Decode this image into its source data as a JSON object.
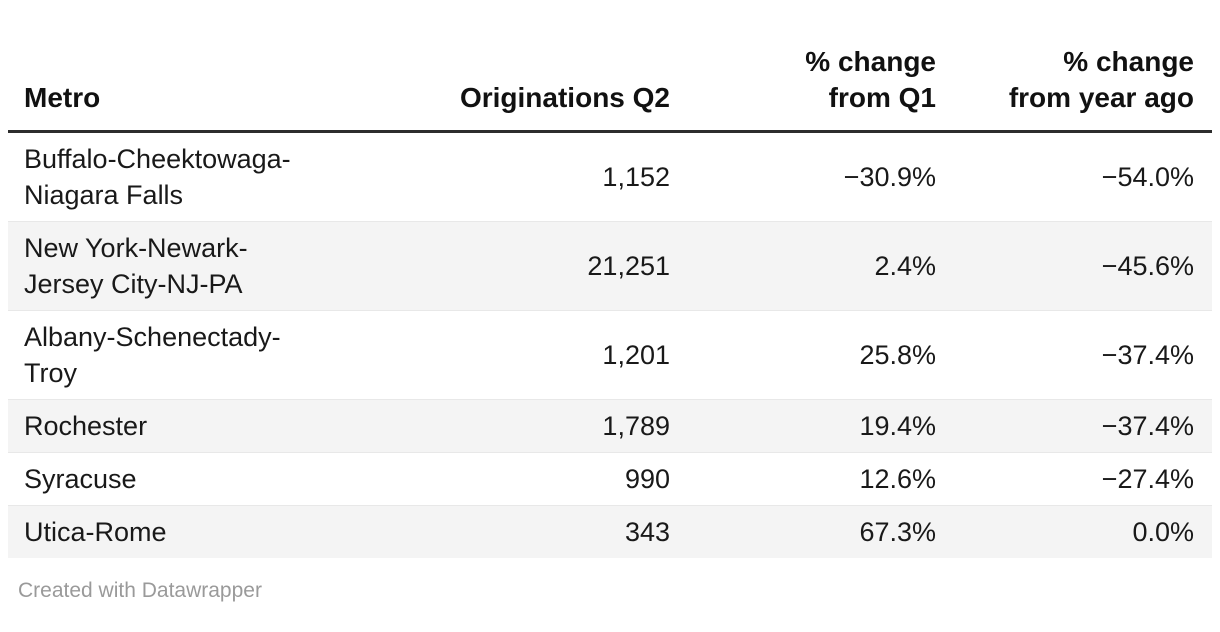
{
  "table": {
    "columns": [
      {
        "label": "Metro",
        "align": "left"
      },
      {
        "label": "Originations Q2",
        "align": "right"
      },
      {
        "label": "% change\nfrom Q1",
        "align": "right"
      },
      {
        "label": "% change\nfrom year ago",
        "align": "right"
      }
    ],
    "rows": [
      {
        "metro": "Buffalo-Cheektowaga-\nNiagara Falls",
        "originations_q2": "1,152",
        "change_q1": "−30.9%",
        "change_year_ago": "−54.0%"
      },
      {
        "metro": "New York-Newark-\nJersey City-NJ-PA",
        "originations_q2": "21,251",
        "change_q1": "2.4%",
        "change_year_ago": "−45.6%"
      },
      {
        "metro": "Albany-Schenectady-\nTroy",
        "originations_q2": "1,201",
        "change_q1": "25.8%",
        "change_year_ago": "−37.4%"
      },
      {
        "metro": "Rochester",
        "originations_q2": "1,789",
        "change_q1": "19.4%",
        "change_year_ago": "−37.4%"
      },
      {
        "metro": "Syracuse",
        "originations_q2": "990",
        "change_q1": "12.6%",
        "change_year_ago": "−27.4%"
      },
      {
        "metro": "Utica-Rome",
        "originations_q2": "343",
        "change_q1": "67.3%",
        "change_year_ago": "0.0%"
      }
    ]
  },
  "footer": {
    "credit": "Created with Datawrapper"
  },
  "colors": {
    "stripe": "#f4f4f4",
    "header_border": "#2d2d2d",
    "text": "#191919",
    "muted": "#9a9a9a"
  },
  "chart_data": {
    "type": "table",
    "columns": [
      "Metro",
      "Originations Q2",
      "% change from Q1",
      "% change from year ago"
    ],
    "rows": [
      [
        "Buffalo-Cheektowaga-Niagara Falls",
        1152,
        -30.9,
        -54.0
      ],
      [
        "New York-Newark-Jersey City-NJ-PA",
        21251,
        2.4,
        -45.6
      ],
      [
        "Albany-Schenectady-Troy",
        1201,
        25.8,
        -37.4
      ],
      [
        "Rochester",
        1789,
        19.4,
        -37.4
      ],
      [
        "Syracuse",
        990,
        12.6,
        -27.4
      ],
      [
        "Utica-Rome",
        343,
        67.3,
        0.0
      ]
    ],
    "notes": "Striped rows; numeric columns right-aligned; credit line: Created with Datawrapper"
  }
}
